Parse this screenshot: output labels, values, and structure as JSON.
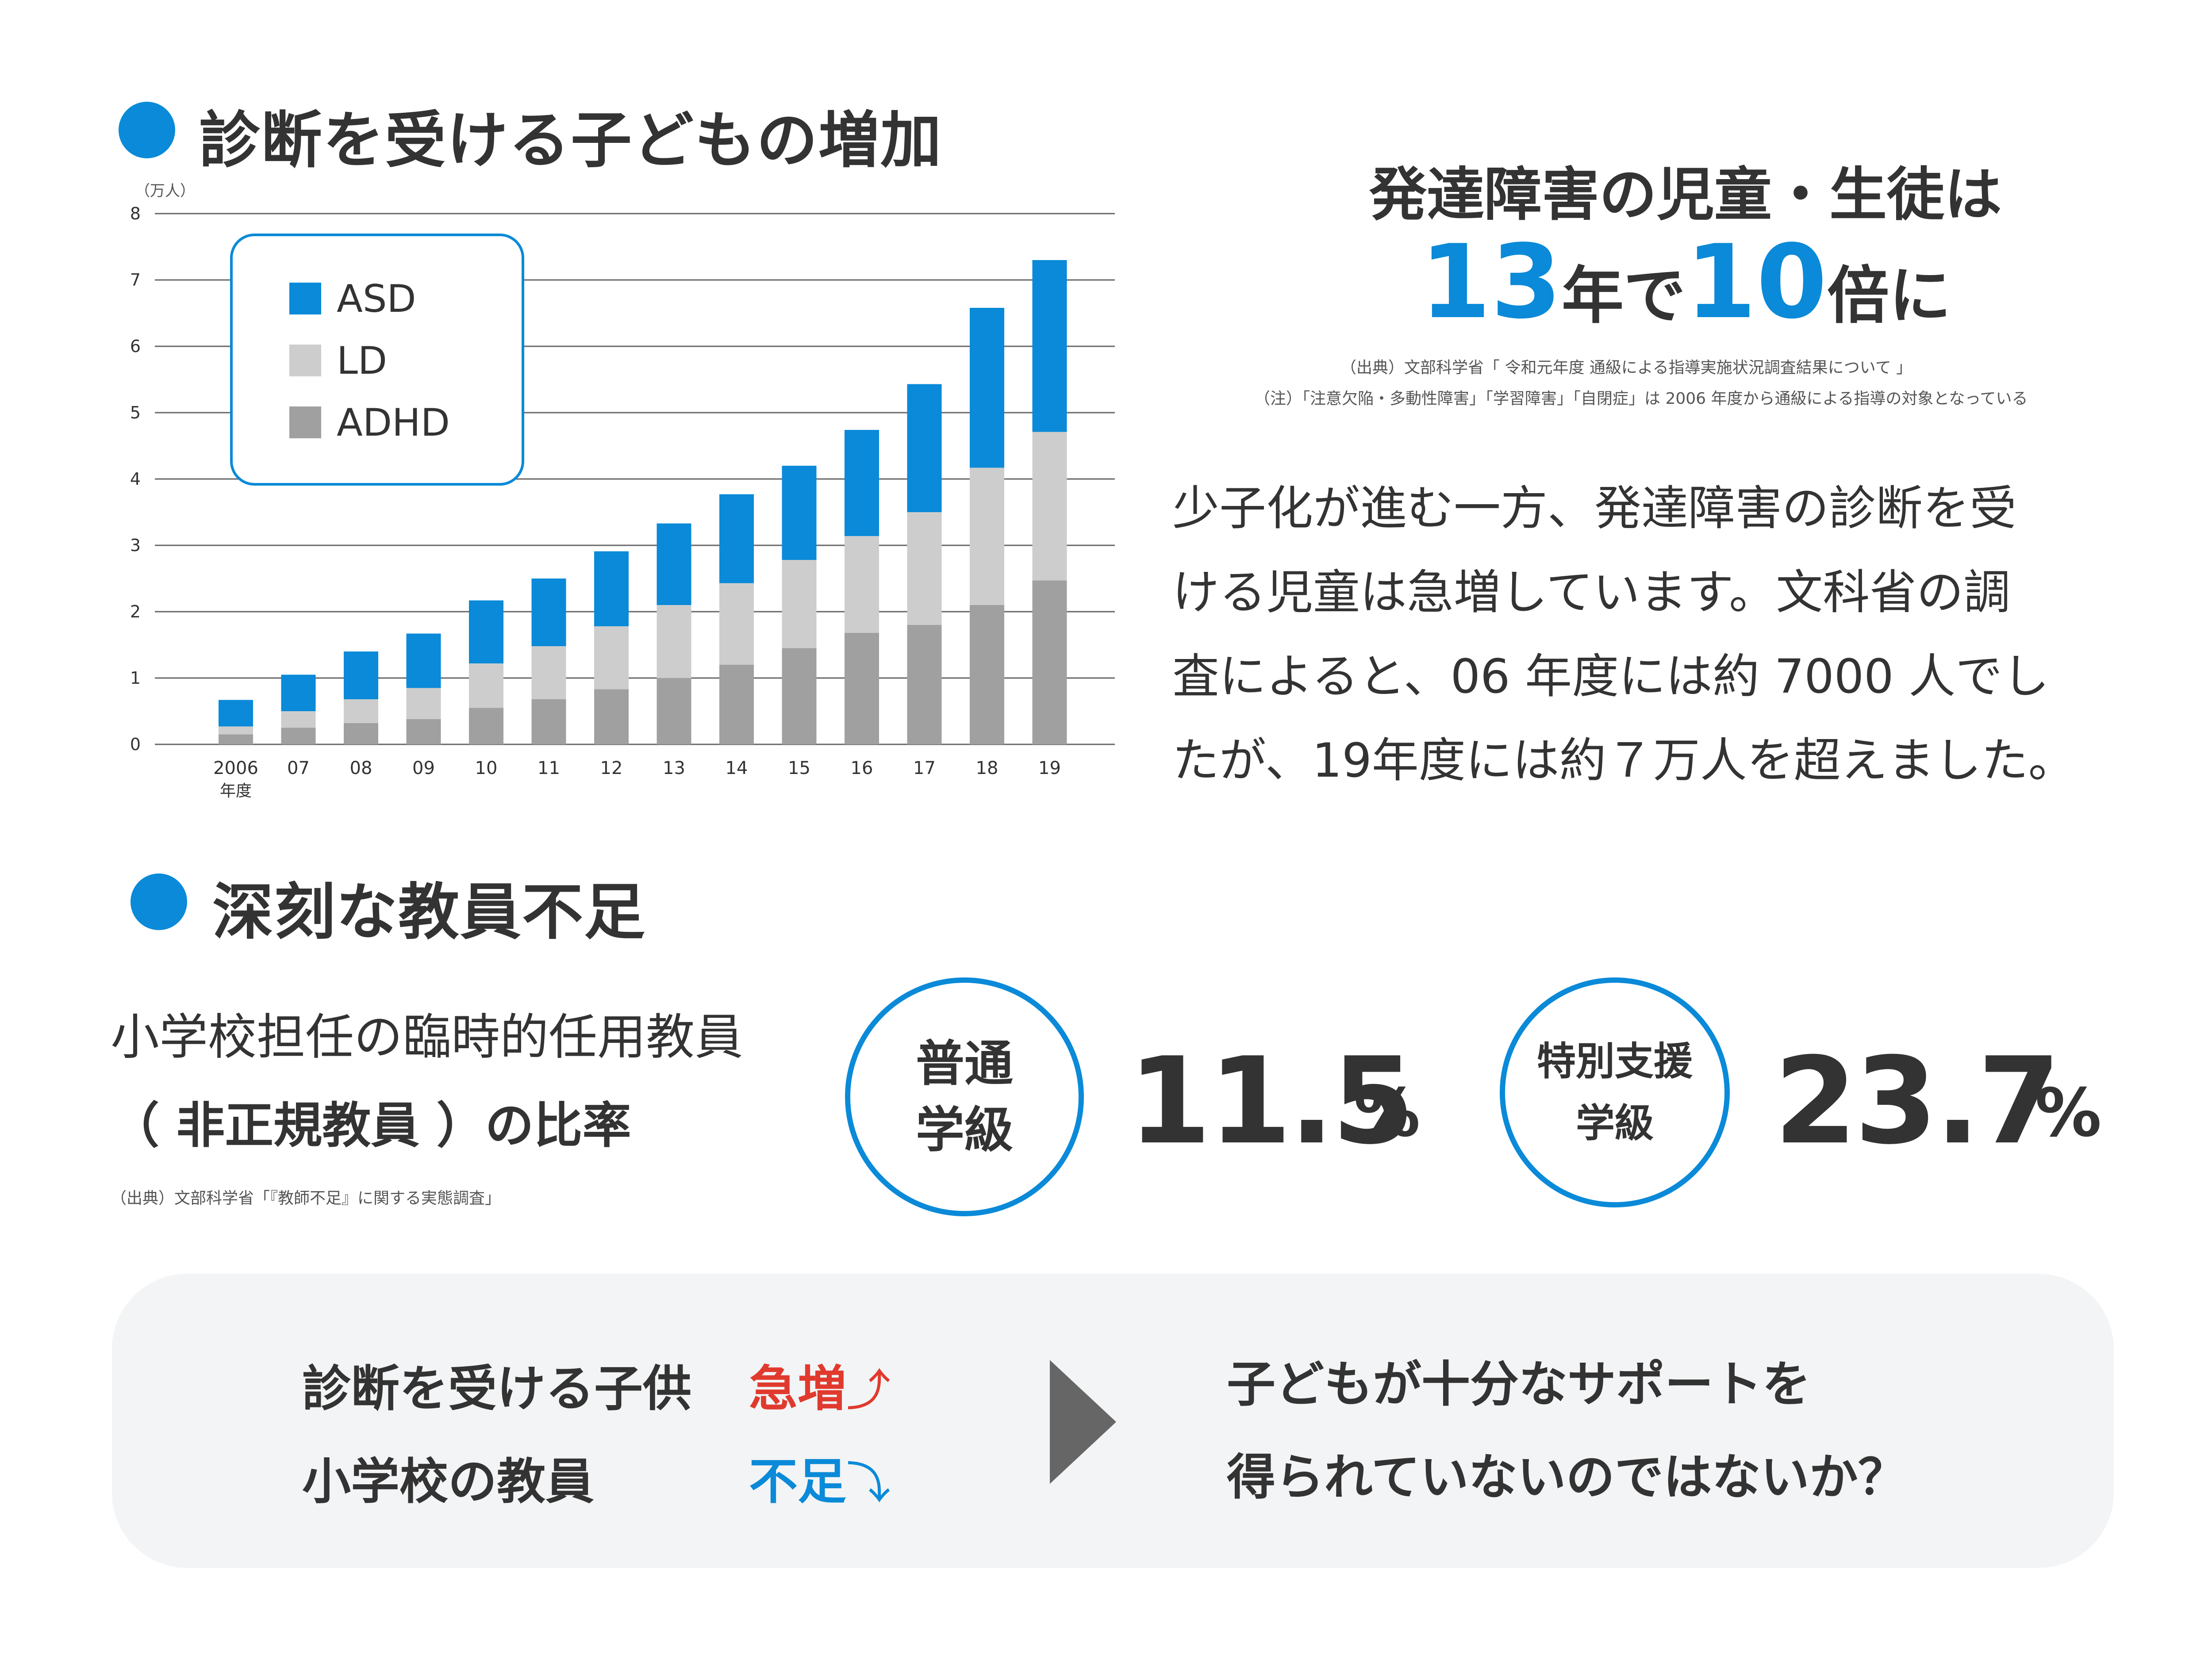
{
  "section1": {
    "heading": "診断を受ける子どもの増加"
  },
  "chart_data": {
    "type": "bar",
    "stacked": true,
    "y_unit": "（万人）",
    "ylim": [
      0,
      8
    ],
    "yticks": [
      "0",
      "1",
      "2",
      "3",
      "4",
      "5",
      "6",
      "7",
      "8"
    ],
    "grid": true,
    "categories": [
      "2006",
      "07",
      "08",
      "09",
      "10",
      "11",
      "12",
      "13",
      "14",
      "15",
      "16",
      "17",
      "18",
      "19"
    ],
    "first_category_sub": "年度",
    "legend_position": "top-left",
    "series": [
      {
        "name": "ADHD",
        "color": "#a0a0a0",
        "values": [
          0.15,
          0.25,
          0.32,
          0.38,
          0.55,
          0.68,
          0.83,
          1.0,
          1.2,
          1.45,
          1.68,
          1.8,
          2.1,
          2.47
        ]
      },
      {
        "name": "LD",
        "color": "#cdcdcd",
        "values": [
          0.12,
          0.25,
          0.36,
          0.47,
          0.67,
          0.8,
          0.95,
          1.1,
          1.23,
          1.33,
          1.46,
          1.7,
          2.07,
          2.24
        ]
      },
      {
        "name": "ASD",
        "color": "#0a8ad8",
        "values": [
          0.4,
          0.55,
          0.72,
          0.82,
          0.95,
          1.02,
          1.13,
          1.23,
          1.34,
          1.42,
          1.6,
          1.93,
          2.41,
          2.59
        ]
      }
    ],
    "legend": [
      "ASD",
      "LD",
      "ADHD"
    ]
  },
  "headline": {
    "line1": "発達障害の児童・生徒は",
    "num1": "13",
    "unit1": "年で",
    "num2": "10",
    "unit2": "倍に",
    "accent_color": "#0a8ad8"
  },
  "sources": {
    "chart_source": "（出典）文部科学省「 令和元年度 通級による指導実施状況調査結果について 」",
    "chart_note": "（注）「注意欠陥・多動性障害」「学習障害」「自閉症」は 2006 年度から通級による指導の対象となっている",
    "teacher_source": "（出典）文部科学省「『教師不足』に関する実態調査」"
  },
  "paragraph": [
    "少子化が進む一方、発達障害の診断を受",
    "ける児童は急増しています。文科省の調",
    "査によると、06 年度には約 7000 人でし",
    "たが、19年度には約７万人を超えました。"
  ],
  "section2": {
    "heading": "深刻な教員不足",
    "desc_line1": "小学校担任の臨時的任用教員",
    "desc_line2": "（ 非正規教員 ）の比率",
    "regular": {
      "label_line1": "普通",
      "label_line2": "学級",
      "value": "11.5",
      "unit": "%"
    },
    "special": {
      "label_line1": "特別支援",
      "label_line2": "学級",
      "value": "23.7",
      "unit": "%"
    }
  },
  "summary": {
    "row1_label": "診断を受ける子供",
    "row1_status": "急増",
    "row1_status_color": "#e03a2e",
    "row1_arrow": "⤴",
    "row2_label": "小学校の教員",
    "row2_status": "不足",
    "row2_status_color": "#0a8ad8",
    "row2_arrow": "⤵",
    "conclusion_line1": "子どもが十分なサポートを",
    "conclusion_line2": "得られていないのではないか？"
  }
}
